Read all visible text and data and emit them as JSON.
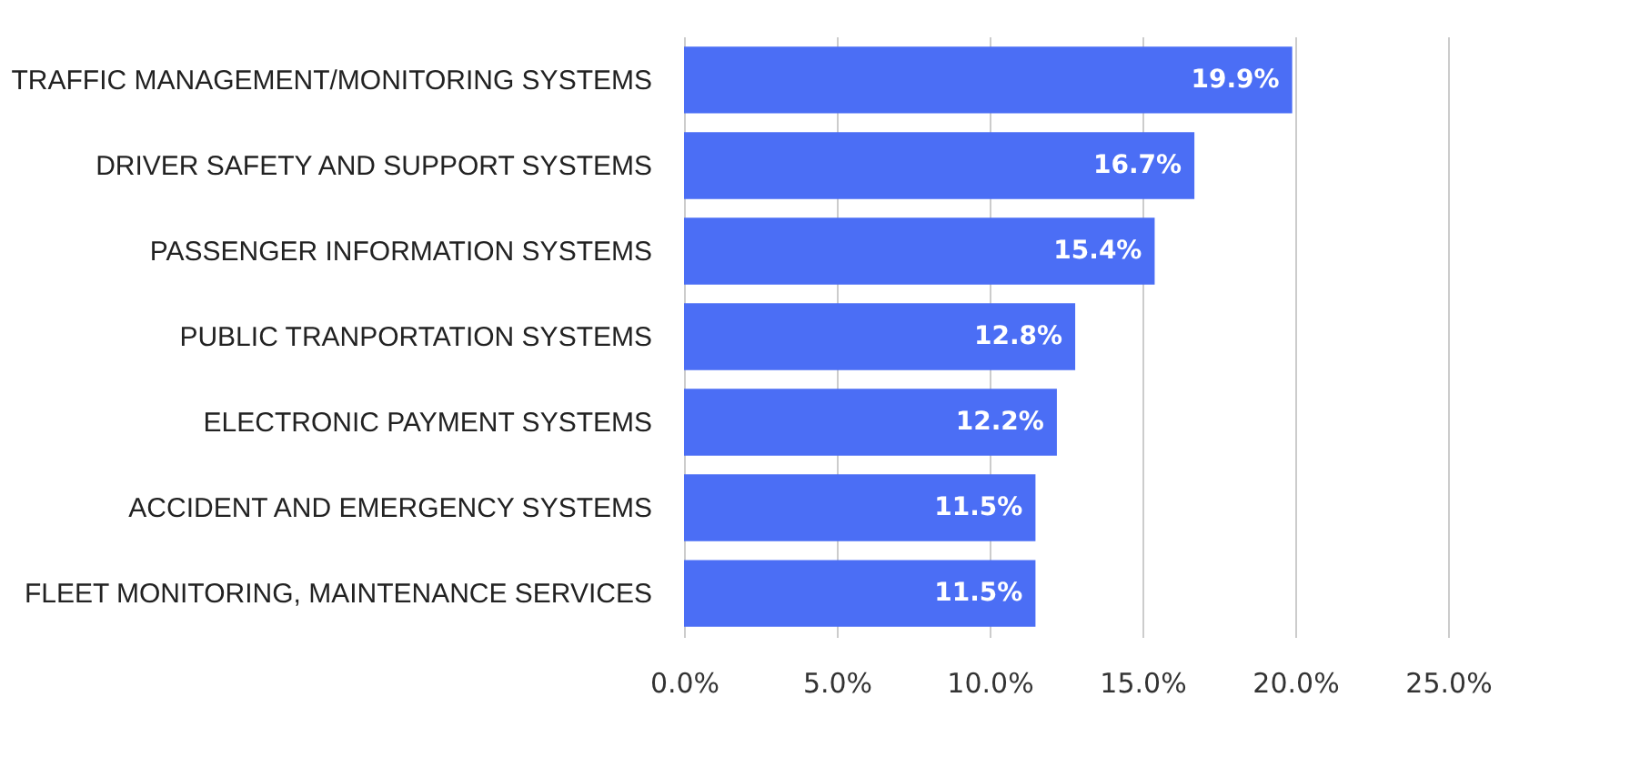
{
  "chart_data": {
    "type": "bar",
    "orientation": "horizontal",
    "categories": [
      "TRAFFIC MANAGEMENT/MONITORING SYSTEMS",
      "DRIVER SAFETY AND SUPPORT SYSTEMS",
      "PASSENGER INFORMATION SYSTEMS",
      "PUBLIC TRANPORTATION SYSTEMS",
      "ELECTRONIC PAYMENT SYSTEMS",
      "ACCIDENT AND EMERGENCY SYSTEMS",
      "FLEET MONITORING, MAINTENANCE SERVICES"
    ],
    "values": [
      19.9,
      16.7,
      15.4,
      12.8,
      12.2,
      11.5,
      11.5
    ],
    "value_labels": [
      "19.9%",
      "16.7%",
      "15.4%",
      "12.8%",
      "12.2%",
      "11.5%",
      "11.5%"
    ],
    "color": "#4b6ef5",
    "xlim": [
      0,
      25
    ],
    "xticks": [
      {
        "value": 0,
        "label": "0.0%"
      },
      {
        "value": 5,
        "label": "5.0%"
      },
      {
        "value": 10,
        "label": "10.0%"
      },
      {
        "value": 15,
        "label": "15.0%"
      },
      {
        "value": 20,
        "label": "20.0%"
      },
      {
        "value": 25,
        "label": "25.0%"
      }
    ],
    "grid": "x"
  }
}
